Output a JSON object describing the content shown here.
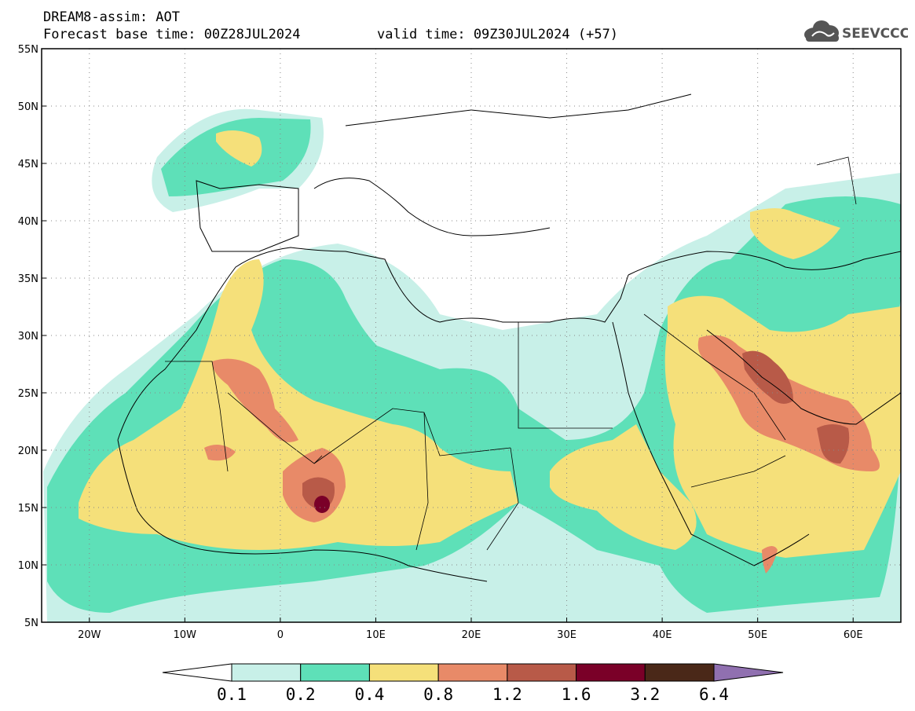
{
  "header": {
    "title": "DREAM8-assim: AOT",
    "base_time": "Forecast base time: 00Z28JUL2024",
    "valid_time": "valid time: 09Z30JUL2024 (+57)"
  },
  "logo": {
    "text": "SEEVCCC",
    "icon": "cloud-icon"
  },
  "map": {
    "projection": "lat-lon",
    "lon_range": [
      -25,
      65
    ],
    "lat_range": [
      5,
      55
    ],
    "lat_ticks": [
      "5N",
      "10N",
      "15N",
      "20N",
      "25N",
      "30N",
      "35N",
      "40N",
      "45N",
      "50N",
      "55N"
    ],
    "lon_ticks": [
      "20W",
      "10W",
      "0",
      "10E",
      "20E",
      "30E",
      "40E",
      "50E",
      "60E"
    ],
    "gridlines": "dotted"
  },
  "colorbar": {
    "levels": [
      "0.1",
      "0.2",
      "0.4",
      "0.8",
      "1.2",
      "1.6",
      "3.2",
      "6.4"
    ],
    "colors": [
      "#ffffff",
      "#c8f0e8",
      "#5ee0b8",
      "#f5e07a",
      "#e88a68",
      "#b85a48",
      "#7a0028",
      "#4a2818",
      "#9070b0"
    ]
  }
}
